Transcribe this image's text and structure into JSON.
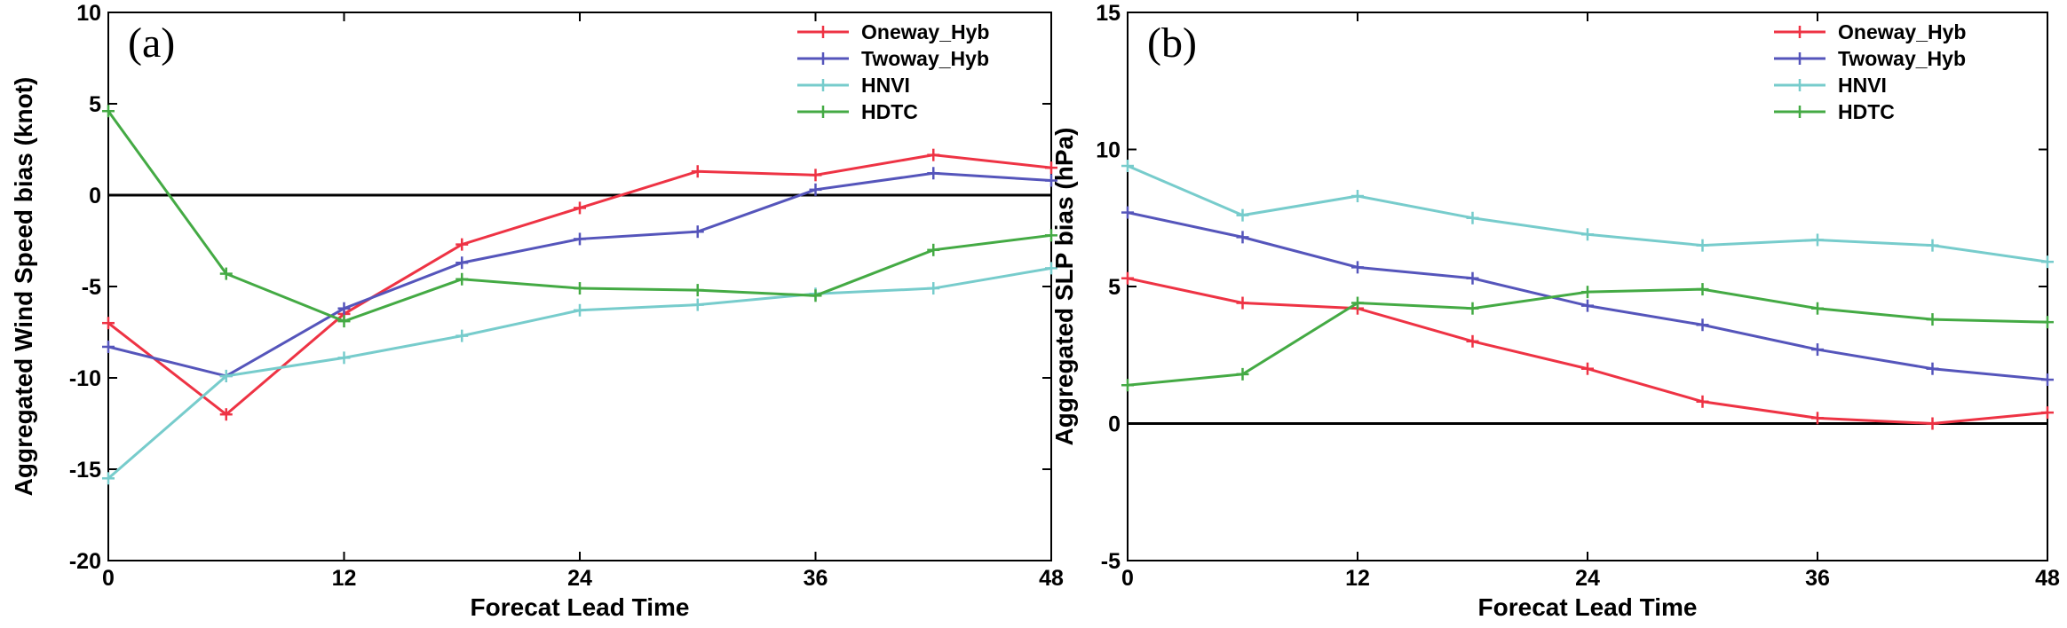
{
  "chart_data": [
    {
      "type": "line",
      "panel_label": "(a)",
      "xlabel": "Forecat Lead Time",
      "ylabel": "Aggregated  Wind Speed bias (knot)",
      "xlim": [
        0,
        48
      ],
      "ylim": [
        -20,
        10
      ],
      "xticks": [
        0,
        12,
        24,
        36,
        48
      ],
      "yticks": [
        -20,
        -15,
        -10,
        -5,
        0,
        5,
        10
      ],
      "zero_line": true,
      "legend_position": "top-right",
      "x": [
        0,
        6,
        12,
        18,
        24,
        30,
        36,
        42,
        48
      ],
      "series": [
        {
          "name": "Oneway_Hyb",
          "color": "#ee3344",
          "values": [
            -7.0,
            -12.0,
            -6.5,
            -2.7,
            -0.7,
            1.3,
            1.1,
            2.2,
            1.5
          ]
        },
        {
          "name": "Twoway_Hyb",
          "color": "#5555bb",
          "values": [
            -8.3,
            -9.9,
            -6.2,
            -3.7,
            -2.4,
            -2.0,
            0.3,
            1.2,
            0.8
          ]
        },
        {
          "name": "HNVI",
          "color": "#77cccc",
          "values": [
            -15.5,
            -9.9,
            -8.9,
            -7.7,
            -6.3,
            -6.0,
            -5.4,
            -5.1,
            -4.0
          ]
        },
        {
          "name": "HDTC",
          "color": "#44aa44",
          "values": [
            4.6,
            -4.3,
            -6.9,
            -4.6,
            -5.1,
            -5.2,
            -5.5,
            -3.0,
            -2.2
          ]
        }
      ]
    },
    {
      "type": "line",
      "panel_label": "(b)",
      "xlabel": "Forecat Lead Time",
      "ylabel": "Aggregated SLP bias (hPa)",
      "xlim": [
        0,
        48
      ],
      "ylim": [
        -5,
        15
      ],
      "xticks": [
        0,
        12,
        24,
        36,
        48
      ],
      "yticks": [
        -5,
        0,
        5,
        10,
        15
      ],
      "zero_line": true,
      "legend_position": "top-right",
      "x": [
        0,
        6,
        12,
        18,
        24,
        30,
        36,
        42,
        48
      ],
      "series": [
        {
          "name": "Oneway_Hyb",
          "color": "#ee3344",
          "values": [
            5.3,
            4.4,
            4.2,
            3.0,
            2.0,
            0.8,
            0.2,
            0.0,
            0.4
          ]
        },
        {
          "name": "Twoway_Hyb",
          "color": "#5555bb",
          "values": [
            7.7,
            6.8,
            5.7,
            5.3,
            4.3,
            3.6,
            2.7,
            2.0,
            1.6
          ]
        },
        {
          "name": "HNVI",
          "color": "#77cccc",
          "values": [
            9.4,
            7.6,
            8.3,
            7.5,
            6.9,
            6.5,
            6.7,
            6.5,
            5.9
          ]
        },
        {
          "name": "HDTC",
          "color": "#44aa44",
          "values": [
            1.4,
            1.8,
            4.4,
            4.2,
            4.8,
            4.9,
            4.2,
            3.8,
            3.7
          ]
        }
      ]
    }
  ]
}
